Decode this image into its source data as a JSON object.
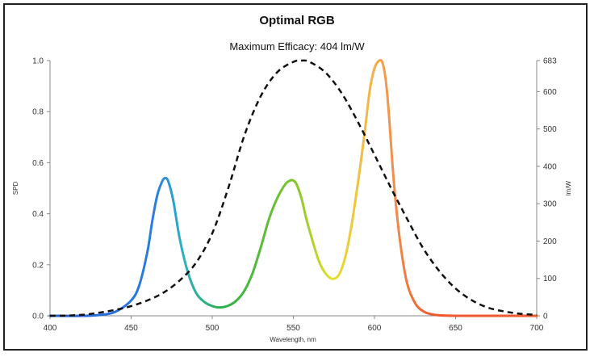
{
  "chart_data": {
    "type": "line",
    "title": "Optimal RGB",
    "subtitle": "Maximum Efficacy: 404 lm/W",
    "xlabel": "Wavelength, nm",
    "ylabel": "SPD",
    "y2label": "lm/W",
    "xlim": [
      400,
      700
    ],
    "ylim": [
      0,
      1.0
    ],
    "y2lim": [
      0,
      683
    ],
    "xticks": [
      "400",
      "450",
      "500",
      "550",
      "600",
      "650",
      "700"
    ],
    "yticks": [
      "0.0",
      "0.2",
      "0.4",
      "0.6",
      "0.8",
      "1.0"
    ],
    "y2ticks": [
      "0",
      "100",
      "200",
      "300",
      "400",
      "500",
      "600",
      "683"
    ],
    "grid": false,
    "series": [
      {
        "style": "solid-rainbow",
        "x": [
          400,
          420,
          430,
          440,
          450,
          455,
          460,
          463,
          466,
          469,
          471,
          473,
          476,
          480,
          485,
          490,
          495,
          500,
          505,
          510,
          515,
          520,
          525,
          530,
          535,
          540,
          545,
          548,
          550,
          552,
          555,
          558,
          562,
          566,
          570,
          574,
          578,
          582,
          586,
          590,
          594,
          597,
          600,
          603,
          605,
          607,
          609,
          611,
          613,
          616,
          620,
          625,
          630,
          635,
          640,
          650,
          660,
          680,
          700
        ],
        "y": [
          0.0,
          0.0,
          0.003,
          0.015,
          0.06,
          0.12,
          0.25,
          0.37,
          0.47,
          0.525,
          0.54,
          0.525,
          0.45,
          0.3,
          0.17,
          0.09,
          0.055,
          0.038,
          0.033,
          0.04,
          0.06,
          0.1,
          0.17,
          0.27,
          0.38,
          0.46,
          0.515,
          0.53,
          0.53,
          0.515,
          0.46,
          0.38,
          0.29,
          0.21,
          0.165,
          0.145,
          0.16,
          0.23,
          0.36,
          0.53,
          0.72,
          0.88,
          0.97,
          1.0,
          0.99,
          0.92,
          0.78,
          0.6,
          0.45,
          0.28,
          0.13,
          0.05,
          0.018,
          0.006,
          0.002,
          0.0,
          0.0,
          0.0,
          0.0
        ]
      },
      {
        "style": "dashed",
        "axis": "right",
        "x": [
          400,
          410,
          420,
          430,
          440,
          450,
          460,
          470,
          480,
          490,
          500,
          510,
          520,
          530,
          540,
          550,
          555,
          560,
          570,
          580,
          590,
          600,
          610,
          620,
          630,
          640,
          650,
          660,
          670,
          680,
          690,
          700
        ],
        "y": [
          0.0,
          0.001,
          0.004,
          0.012,
          0.023,
          0.038,
          0.06,
          0.091,
          0.139,
          0.208,
          0.323,
          0.503,
          0.71,
          0.862,
          0.954,
          0.995,
          1.0,
          0.995,
          0.952,
          0.87,
          0.757,
          0.631,
          0.503,
          0.381,
          0.265,
          0.175,
          0.107,
          0.061,
          0.032,
          0.017,
          0.008,
          0.004
        ]
      }
    ]
  }
}
